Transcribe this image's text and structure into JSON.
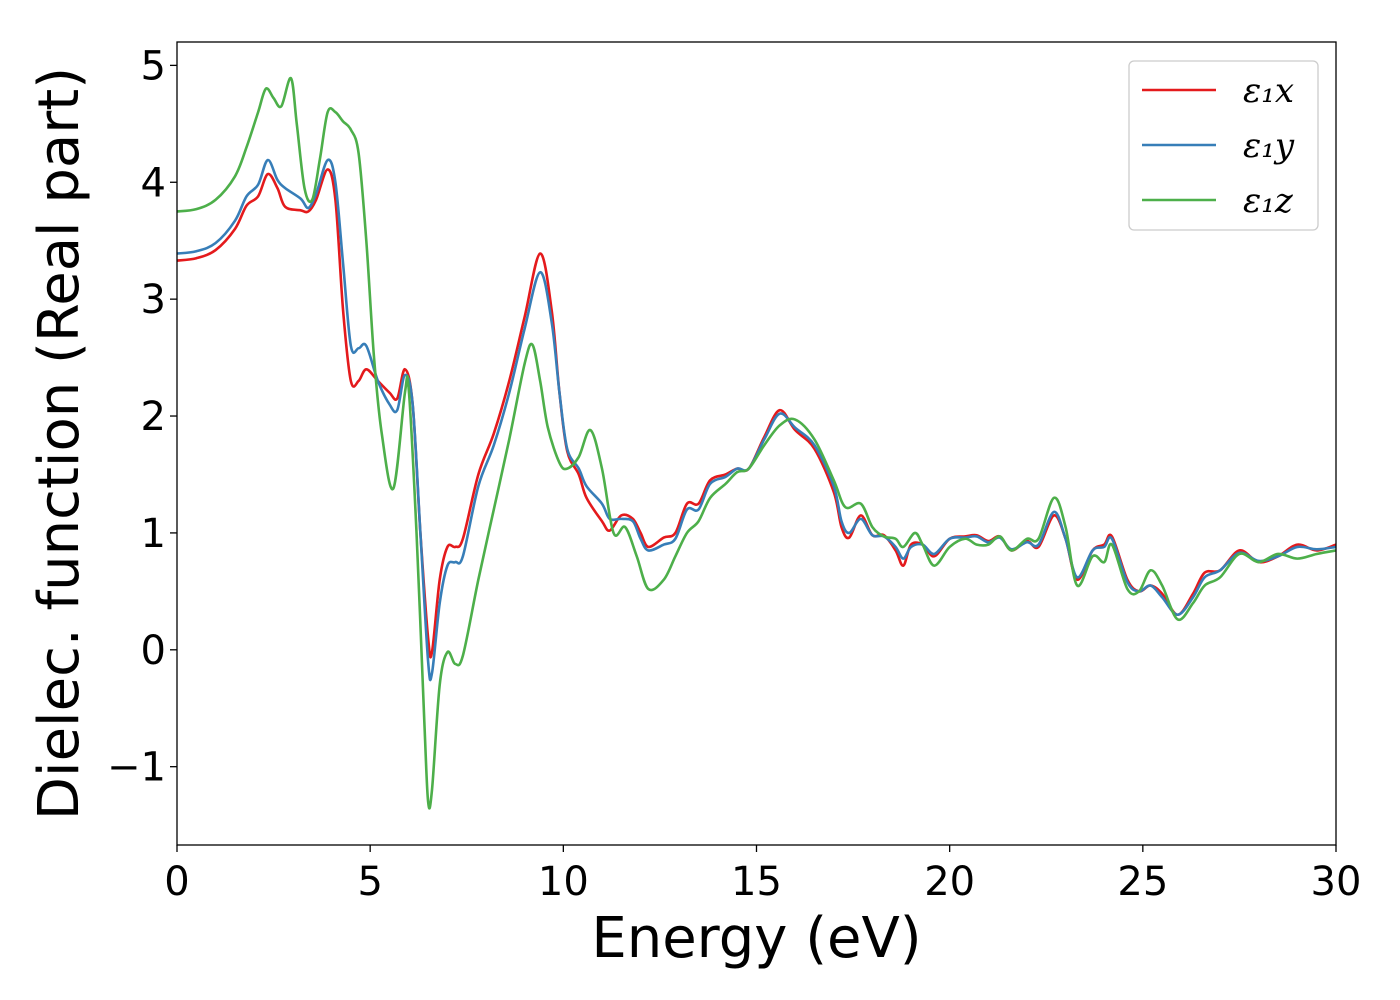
{
  "chart_data": {
    "type": "line",
    "title": "",
    "xlabel": "Energy (eV)",
    "ylabel": "Dielec. function (Real part)",
    "xlim": [
      0,
      30
    ],
    "ylim": [
      -1.67,
      5.2
    ],
    "xticks": [
      0,
      5,
      10,
      15,
      20,
      25,
      30
    ],
    "xtick_labels": [
      "0",
      "5",
      "10",
      "15",
      "20",
      "25",
      "30"
    ],
    "yticks": [
      -1,
      0,
      1,
      2,
      3,
      4,
      5
    ],
    "ytick_labels": [
      "−1",
      "0",
      "1",
      "2",
      "3",
      "4",
      "5"
    ],
    "grid": false,
    "legend_position": "top-right",
    "series": [
      {
        "name": "ε₁x",
        "color": "#e41a1c",
        "points": [
          [
            0,
            3.33
          ],
          [
            0.5,
            3.35
          ],
          [
            1,
            3.42
          ],
          [
            1.5,
            3.6
          ],
          [
            1.8,
            3.8
          ],
          [
            2.1,
            3.88
          ],
          [
            2.35,
            4.07
          ],
          [
            2.6,
            3.95
          ],
          [
            2.8,
            3.79
          ],
          [
            3.2,
            3.76
          ],
          [
            3.4,
            3.75
          ],
          [
            3.6,
            3.85
          ],
          [
            3.9,
            4.11
          ],
          [
            4.1,
            3.85
          ],
          [
            4.3,
            2.9
          ],
          [
            4.5,
            2.3
          ],
          [
            4.7,
            2.3
          ],
          [
            4.9,
            2.4
          ],
          [
            5.2,
            2.3
          ],
          [
            5.5,
            2.2
          ],
          [
            5.7,
            2.15
          ],
          [
            5.9,
            2.4
          ],
          [
            6.1,
            2.1
          ],
          [
            6.3,
            1.0
          ],
          [
            6.5,
            0.1
          ],
          [
            6.6,
            -0.02
          ],
          [
            6.8,
            0.6
          ],
          [
            7.0,
            0.88
          ],
          [
            7.2,
            0.88
          ],
          [
            7.4,
            0.95
          ],
          [
            7.8,
            1.5
          ],
          [
            8.2,
            1.85
          ],
          [
            8.6,
            2.3
          ],
          [
            9.0,
            2.85
          ],
          [
            9.4,
            3.39
          ],
          [
            9.7,
            2.9
          ],
          [
            9.9,
            2.2
          ],
          [
            10.1,
            1.7
          ],
          [
            10.4,
            1.5
          ],
          [
            10.6,
            1.3
          ],
          [
            11.0,
            1.1
          ],
          [
            11.2,
            1.02
          ],
          [
            11.5,
            1.15
          ],
          [
            11.8,
            1.12
          ],
          [
            12.0,
            1.0
          ],
          [
            12.2,
            0.88
          ],
          [
            12.6,
            0.96
          ],
          [
            12.9,
            1.0
          ],
          [
            13.2,
            1.25
          ],
          [
            13.5,
            1.25
          ],
          [
            13.8,
            1.45
          ],
          [
            14.2,
            1.5
          ],
          [
            14.5,
            1.55
          ],
          [
            14.8,
            1.55
          ],
          [
            15.2,
            1.82
          ],
          [
            15.6,
            2.05
          ],
          [
            16.0,
            1.88
          ],
          [
            16.5,
            1.72
          ],
          [
            17.0,
            1.35
          ],
          [
            17.2,
            1.05
          ],
          [
            17.4,
            0.96
          ],
          [
            17.7,
            1.15
          ],
          [
            18.0,
            0.98
          ],
          [
            18.3,
            0.98
          ],
          [
            18.6,
            0.85
          ],
          [
            18.8,
            0.72
          ],
          [
            19.0,
            0.9
          ],
          [
            19.3,
            0.9
          ],
          [
            19.6,
            0.8
          ],
          [
            20.0,
            0.95
          ],
          [
            20.4,
            0.97
          ],
          [
            20.7,
            0.98
          ],
          [
            21.0,
            0.93
          ],
          [
            21.3,
            0.97
          ],
          [
            21.6,
            0.85
          ],
          [
            22.0,
            0.93
          ],
          [
            22.3,
            0.88
          ],
          [
            22.7,
            1.15
          ],
          [
            23.0,
            0.95
          ],
          [
            23.3,
            0.6
          ],
          [
            23.7,
            0.85
          ],
          [
            24.0,
            0.9
          ],
          [
            24.2,
            0.97
          ],
          [
            24.6,
            0.6
          ],
          [
            24.9,
            0.5
          ],
          [
            25.2,
            0.55
          ],
          [
            25.5,
            0.48
          ],
          [
            25.9,
            0.3
          ],
          [
            26.3,
            0.48
          ],
          [
            26.6,
            0.66
          ],
          [
            27.0,
            0.68
          ],
          [
            27.5,
            0.85
          ],
          [
            28.0,
            0.75
          ],
          [
            28.5,
            0.8
          ],
          [
            29.0,
            0.9
          ],
          [
            29.5,
            0.85
          ],
          [
            30,
            0.9
          ]
        ]
      },
      {
        "name": "ε₁y",
        "color": "#377eb8",
        "points": [
          [
            0,
            3.39
          ],
          [
            0.5,
            3.41
          ],
          [
            1,
            3.48
          ],
          [
            1.5,
            3.67
          ],
          [
            1.8,
            3.88
          ],
          [
            2.1,
            3.98
          ],
          [
            2.35,
            4.19
          ],
          [
            2.6,
            4.02
          ],
          [
            2.8,
            3.95
          ],
          [
            3.2,
            3.86
          ],
          [
            3.4,
            3.78
          ],
          [
            3.6,
            3.9
          ],
          [
            3.9,
            4.19
          ],
          [
            4.1,
            4.0
          ],
          [
            4.3,
            3.3
          ],
          [
            4.5,
            2.6
          ],
          [
            4.7,
            2.58
          ],
          [
            4.9,
            2.6
          ],
          [
            5.2,
            2.3
          ],
          [
            5.5,
            2.1
          ],
          [
            5.7,
            2.05
          ],
          [
            5.9,
            2.35
          ],
          [
            6.1,
            2.1
          ],
          [
            6.3,
            1.0
          ],
          [
            6.5,
            -0.1
          ],
          [
            6.6,
            -0.2
          ],
          [
            6.8,
            0.4
          ],
          [
            7.0,
            0.72
          ],
          [
            7.2,
            0.75
          ],
          [
            7.4,
            0.8
          ],
          [
            7.8,
            1.4
          ],
          [
            8.2,
            1.75
          ],
          [
            8.6,
            2.2
          ],
          [
            9.0,
            2.75
          ],
          [
            9.4,
            3.23
          ],
          [
            9.7,
            2.8
          ],
          [
            9.9,
            2.2
          ],
          [
            10.1,
            1.72
          ],
          [
            10.4,
            1.55
          ],
          [
            10.6,
            1.4
          ],
          [
            11.0,
            1.25
          ],
          [
            11.2,
            1.12
          ],
          [
            11.5,
            1.12
          ],
          [
            11.8,
            1.1
          ],
          [
            12.0,
            0.95
          ],
          [
            12.2,
            0.85
          ],
          [
            12.6,
            0.9
          ],
          [
            12.9,
            0.95
          ],
          [
            13.2,
            1.2
          ],
          [
            13.5,
            1.2
          ],
          [
            13.8,
            1.42
          ],
          [
            14.2,
            1.48
          ],
          [
            14.5,
            1.55
          ],
          [
            14.8,
            1.55
          ],
          [
            15.2,
            1.8
          ],
          [
            15.6,
            2.02
          ],
          [
            16.0,
            1.9
          ],
          [
            16.5,
            1.75
          ],
          [
            17.0,
            1.4
          ],
          [
            17.2,
            1.1
          ],
          [
            17.4,
            1.0
          ],
          [
            17.7,
            1.12
          ],
          [
            18.0,
            0.98
          ],
          [
            18.3,
            0.97
          ],
          [
            18.6,
            0.88
          ],
          [
            18.8,
            0.78
          ],
          [
            19.0,
            0.88
          ],
          [
            19.3,
            0.9
          ],
          [
            19.6,
            0.82
          ],
          [
            20.0,
            0.95
          ],
          [
            20.4,
            0.96
          ],
          [
            20.7,
            0.97
          ],
          [
            21.0,
            0.92
          ],
          [
            21.3,
            0.96
          ],
          [
            21.6,
            0.86
          ],
          [
            22.0,
            0.92
          ],
          [
            22.3,
            0.9
          ],
          [
            22.7,
            1.18
          ],
          [
            23.0,
            0.95
          ],
          [
            23.3,
            0.62
          ],
          [
            23.7,
            0.85
          ],
          [
            24.0,
            0.88
          ],
          [
            24.2,
            0.95
          ],
          [
            24.6,
            0.58
          ],
          [
            24.9,
            0.5
          ],
          [
            25.2,
            0.55
          ],
          [
            25.5,
            0.45
          ],
          [
            25.9,
            0.3
          ],
          [
            26.3,
            0.45
          ],
          [
            26.6,
            0.62
          ],
          [
            27.0,
            0.68
          ],
          [
            27.5,
            0.83
          ],
          [
            28.0,
            0.76
          ],
          [
            28.5,
            0.8
          ],
          [
            29.0,
            0.88
          ],
          [
            29.5,
            0.86
          ],
          [
            30,
            0.88
          ]
        ]
      },
      {
        "name": "ε₁z",
        "color": "#4daf4a",
        "points": [
          [
            0,
            3.75
          ],
          [
            0.5,
            3.77
          ],
          [
            1,
            3.85
          ],
          [
            1.5,
            4.05
          ],
          [
            1.8,
            4.3
          ],
          [
            2.1,
            4.6
          ],
          [
            2.3,
            4.8
          ],
          [
            2.5,
            4.72
          ],
          [
            2.7,
            4.65
          ],
          [
            2.95,
            4.89
          ],
          [
            3.1,
            4.5
          ],
          [
            3.3,
            3.95
          ],
          [
            3.5,
            3.85
          ],
          [
            3.7,
            4.2
          ],
          [
            3.9,
            4.6
          ],
          [
            4.1,
            4.6
          ],
          [
            4.3,
            4.52
          ],
          [
            4.5,
            4.45
          ],
          [
            4.7,
            4.25
          ],
          [
            4.9,
            3.5
          ],
          [
            5.1,
            2.5
          ],
          [
            5.3,
            1.85
          ],
          [
            5.6,
            1.38
          ],
          [
            5.9,
            2.2
          ],
          [
            6.0,
            2.22
          ],
          [
            6.2,
            1.0
          ],
          [
            6.4,
            -0.6
          ],
          [
            6.5,
            -1.3
          ],
          [
            6.6,
            -1.2
          ],
          [
            6.8,
            -0.3
          ],
          [
            7.0,
            -0.02
          ],
          [
            7.2,
            -0.12
          ],
          [
            7.4,
            -0.05
          ],
          [
            7.8,
            0.6
          ],
          [
            8.2,
            1.2
          ],
          [
            8.6,
            1.8
          ],
          [
            9.0,
            2.45
          ],
          [
            9.2,
            2.61
          ],
          [
            9.4,
            2.3
          ],
          [
            9.6,
            1.9
          ],
          [
            9.9,
            1.6
          ],
          [
            10.1,
            1.55
          ],
          [
            10.4,
            1.65
          ],
          [
            10.7,
            1.88
          ],
          [
            11.0,
            1.55
          ],
          [
            11.3,
            1.0
          ],
          [
            11.6,
            1.05
          ],
          [
            11.9,
            0.8
          ],
          [
            12.2,
            0.52
          ],
          [
            12.6,
            0.6
          ],
          [
            12.9,
            0.8
          ],
          [
            13.2,
            1.0
          ],
          [
            13.5,
            1.1
          ],
          [
            13.8,
            1.3
          ],
          [
            14.2,
            1.42
          ],
          [
            14.5,
            1.52
          ],
          [
            14.8,
            1.55
          ],
          [
            15.2,
            1.75
          ],
          [
            15.6,
            1.92
          ],
          [
            16.0,
            1.97
          ],
          [
            16.5,
            1.8
          ],
          [
            17.0,
            1.45
          ],
          [
            17.3,
            1.22
          ],
          [
            17.7,
            1.25
          ],
          [
            18.0,
            1.05
          ],
          [
            18.3,
            0.97
          ],
          [
            18.6,
            0.95
          ],
          [
            18.8,
            0.88
          ],
          [
            19.1,
            1.0
          ],
          [
            19.3,
            0.9
          ],
          [
            19.6,
            0.72
          ],
          [
            20.0,
            0.88
          ],
          [
            20.4,
            0.95
          ],
          [
            20.7,
            0.9
          ],
          [
            21.0,
            0.9
          ],
          [
            21.3,
            0.97
          ],
          [
            21.6,
            0.85
          ],
          [
            22.0,
            0.95
          ],
          [
            22.3,
            0.95
          ],
          [
            22.7,
            1.3
          ],
          [
            23.0,
            1.05
          ],
          [
            23.3,
            0.55
          ],
          [
            23.7,
            0.8
          ],
          [
            24.0,
            0.75
          ],
          [
            24.2,
            0.9
          ],
          [
            24.6,
            0.52
          ],
          [
            24.9,
            0.5
          ],
          [
            25.2,
            0.68
          ],
          [
            25.5,
            0.55
          ],
          [
            25.9,
            0.26
          ],
          [
            26.3,
            0.4
          ],
          [
            26.6,
            0.55
          ],
          [
            27.0,
            0.62
          ],
          [
            27.5,
            0.82
          ],
          [
            28.0,
            0.75
          ],
          [
            28.5,
            0.82
          ],
          [
            29.0,
            0.78
          ],
          [
            29.5,
            0.82
          ],
          [
            30,
            0.85
          ]
        ]
      }
    ]
  }
}
